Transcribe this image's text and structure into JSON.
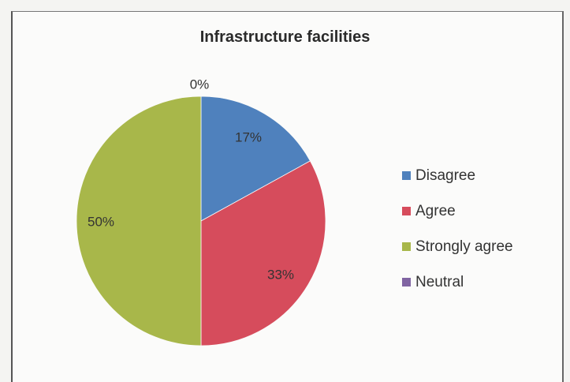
{
  "chart_data": {
    "type": "pie",
    "title": "Infrastructure facilities",
    "slices": [
      {
        "name": "Disagree",
        "value": 17,
        "label": "17%",
        "color": "#4f81bd"
      },
      {
        "name": "Agree",
        "value": 33,
        "label": "33%",
        "color": "#d64c5c"
      },
      {
        "name": "Strongly agree",
        "value": 50,
        "label": "50%",
        "color": "#a8b74a"
      },
      {
        "name": "Neutral",
        "value": 0,
        "label": "0%",
        "color": "#8064a2"
      }
    ],
    "legend_position": "right"
  }
}
